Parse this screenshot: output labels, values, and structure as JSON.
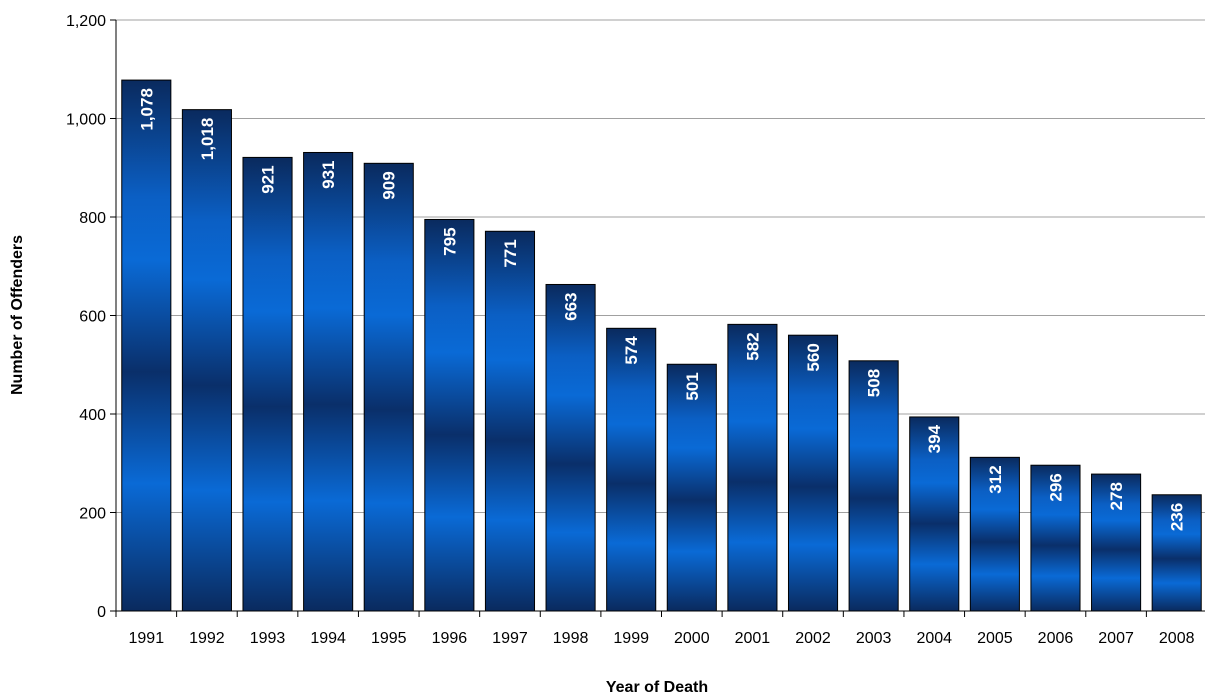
{
  "chart_data": {
    "type": "bar",
    "title": "",
    "xlabel": "Year of Death",
    "ylabel": "Number of Offenders",
    "categories": [
      "1991",
      "1992",
      "1993",
      "1994",
      "1995",
      "1996",
      "1997",
      "1998",
      "1999",
      "2000",
      "2001",
      "2002",
      "2003",
      "2004",
      "2005",
      "2006",
      "2007",
      "2008"
    ],
    "values": [
      1078,
      1018,
      921,
      931,
      909,
      795,
      771,
      663,
      574,
      501,
      582,
      560,
      508,
      394,
      312,
      296,
      278,
      236
    ],
    "data_labels": [
      "1,078",
      "1,018",
      "921",
      "931",
      "909",
      "795",
      "771",
      "663",
      "574",
      "501",
      "582",
      "560",
      "508",
      "394",
      "312",
      "296",
      "278",
      "236"
    ],
    "ylim": [
      0,
      1200
    ],
    "yticks": [
      0,
      200,
      400,
      600,
      800,
      1000,
      1200
    ],
    "ytick_labels": [
      "0",
      "200",
      "400",
      "600",
      "800",
      "1,000",
      "1,200"
    ],
    "grid": true,
    "legend": "none",
    "colors": {
      "bar_dark": "#0a2a5e",
      "bar_light": "#0a6ad6",
      "grid": "#a0a0a0",
      "axis": "#000000"
    }
  }
}
